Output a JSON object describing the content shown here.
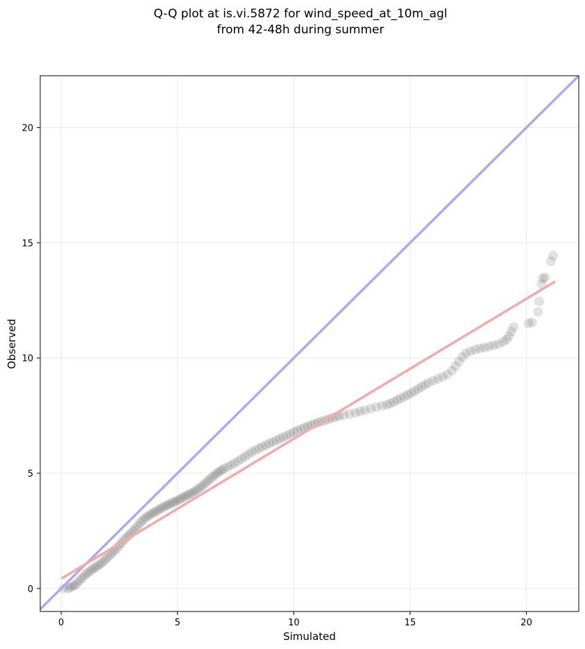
{
  "chart_data": {
    "type": "scatter",
    "title_line1": "Q-Q plot at is.vi.5872 for wind_speed_at_10m_agl",
    "title_line2": "from 42-48h during summer",
    "xlabel": "Simulated",
    "ylabel": "Observed",
    "xlim": [
      -0.9,
      22.25
    ],
    "ylim": [
      -1.0,
      22.25
    ],
    "xticks": [
      0,
      5,
      10,
      15,
      20
    ],
    "yticks": [
      0,
      5,
      10,
      15,
      20
    ],
    "grid": true,
    "colors": {
      "points": "#222222",
      "identity_line": "#aaaaf2",
      "fit_line": "#f4a9a9",
      "grid": "#e8e8e8"
    },
    "identity_line": {
      "x": [
        -0.9,
        22.25
      ],
      "y": [
        -0.9,
        22.25
      ]
    },
    "fit_line": {
      "x": [
        0.05,
        21.2
      ],
      "y": [
        0.45,
        13.3
      ]
    },
    "points": [
      [
        0.1,
        0.0
      ],
      [
        0.3,
        0.0
      ],
      [
        0.4,
        0.05
      ],
      [
        0.5,
        0.1
      ],
      [
        0.6,
        0.15
      ],
      [
        0.7,
        0.25
      ],
      [
        0.8,
        0.35
      ],
      [
        0.9,
        0.45
      ],
      [
        1.0,
        0.55
      ],
      [
        1.1,
        0.65
      ],
      [
        1.2,
        0.72
      ],
      [
        1.3,
        0.8
      ],
      [
        1.4,
        0.87
      ],
      [
        1.5,
        0.93
      ],
      [
        1.6,
        1.0
      ],
      [
        1.7,
        1.07
      ],
      [
        1.8,
        1.15
      ],
      [
        1.9,
        1.25
      ],
      [
        2.0,
        1.35
      ],
      [
        2.1,
        1.45
      ],
      [
        2.2,
        1.55
      ],
      [
        2.3,
        1.65
      ],
      [
        2.4,
        1.75
      ],
      [
        2.5,
        1.87
      ],
      [
        2.6,
        1.98
      ],
      [
        2.7,
        2.1
      ],
      [
        2.8,
        2.2
      ],
      [
        2.9,
        2.3
      ],
      [
        3.0,
        2.4
      ],
      [
        3.1,
        2.5
      ],
      [
        3.2,
        2.6
      ],
      [
        3.3,
        2.72
      ],
      [
        3.4,
        2.85
      ],
      [
        3.5,
        2.95
      ],
      [
        3.6,
        3.05
      ],
      [
        3.7,
        3.12
      ],
      [
        3.8,
        3.18
      ],
      [
        3.9,
        3.25
      ],
      [
        4.0,
        3.3
      ],
      [
        4.1,
        3.36
      ],
      [
        4.2,
        3.42
      ],
      [
        4.3,
        3.48
      ],
      [
        4.4,
        3.53
      ],
      [
        4.5,
        3.58
      ],
      [
        4.6,
        3.63
      ],
      [
        4.7,
        3.68
      ],
      [
        4.8,
        3.73
      ],
      [
        4.9,
        3.77
      ],
      [
        5.0,
        3.82
      ],
      [
        5.1,
        3.87
      ],
      [
        5.2,
        3.93
      ],
      [
        5.3,
        3.98
      ],
      [
        5.4,
        4.03
      ],
      [
        5.5,
        4.08
      ],
      [
        5.6,
        4.13
      ],
      [
        5.7,
        4.19
      ],
      [
        5.8,
        4.25
      ],
      [
        5.9,
        4.32
      ],
      [
        6.0,
        4.4
      ],
      [
        6.1,
        4.48
      ],
      [
        6.2,
        4.57
      ],
      [
        6.3,
        4.66
      ],
      [
        6.4,
        4.75
      ],
      [
        6.5,
        4.84
      ],
      [
        6.6,
        4.92
      ],
      [
        6.7,
        5.0
      ],
      [
        6.8,
        5.07
      ],
      [
        6.9,
        5.14
      ],
      [
        7.0,
        5.2
      ],
      [
        7.15,
        5.27
      ],
      [
        7.3,
        5.35
      ],
      [
        7.45,
        5.43
      ],
      [
        7.6,
        5.52
      ],
      [
        7.75,
        5.62
      ],
      [
        7.9,
        5.72
      ],
      [
        8.05,
        5.82
      ],
      [
        8.2,
        5.92
      ],
      [
        8.35,
        6.0
      ],
      [
        8.5,
        6.08
      ],
      [
        8.65,
        6.15
      ],
      [
        8.8,
        6.22
      ],
      [
        8.95,
        6.29
      ],
      [
        9.1,
        6.36
      ],
      [
        9.25,
        6.43
      ],
      [
        9.4,
        6.5
      ],
      [
        9.55,
        6.57
      ],
      [
        9.7,
        6.63
      ],
      [
        9.85,
        6.7
      ],
      [
        10.0,
        6.78
      ],
      [
        10.15,
        6.85
      ],
      [
        10.3,
        6.92
      ],
      [
        10.45,
        6.98
      ],
      [
        10.6,
        7.04
      ],
      [
        10.75,
        7.1
      ],
      [
        10.9,
        7.15
      ],
      [
        11.05,
        7.2
      ],
      [
        11.2,
        7.25
      ],
      [
        11.35,
        7.3
      ],
      [
        11.5,
        7.35
      ],
      [
        11.65,
        7.4
      ],
      [
        11.8,
        7.45
      ],
      [
        11.95,
        7.48
      ],
      [
        12.15,
        7.52
      ],
      [
        12.4,
        7.57
      ],
      [
        12.65,
        7.62
      ],
      [
        12.85,
        7.68
      ],
      [
        13.05,
        7.73
      ],
      [
        13.3,
        7.8
      ],
      [
        13.55,
        7.87
      ],
      [
        13.8,
        7.93
      ],
      [
        14.0,
        7.97
      ],
      [
        14.15,
        8.02
      ],
      [
        14.3,
        8.1
      ],
      [
        14.45,
        8.18
      ],
      [
        14.6,
        8.25
      ],
      [
        14.75,
        8.33
      ],
      [
        14.9,
        8.4
      ],
      [
        15.05,
        8.48
      ],
      [
        15.2,
        8.57
      ],
      [
        15.35,
        8.66
      ],
      [
        15.5,
        8.75
      ],
      [
        15.65,
        8.84
      ],
      [
        15.8,
        8.93
      ],
      [
        16.0,
        9.02
      ],
      [
        16.2,
        9.1
      ],
      [
        16.4,
        9.18
      ],
      [
        16.6,
        9.28
      ],
      [
        16.8,
        9.45
      ],
      [
        16.95,
        9.65
      ],
      [
        17.1,
        9.85
      ],
      [
        17.25,
        10.05
      ],
      [
        17.4,
        10.2
      ],
      [
        17.6,
        10.3
      ],
      [
        17.8,
        10.37
      ],
      [
        18.0,
        10.42
      ],
      [
        18.2,
        10.45
      ],
      [
        18.4,
        10.5
      ],
      [
        18.6,
        10.55
      ],
      [
        18.8,
        10.6
      ],
      [
        19.0,
        10.7
      ],
      [
        19.15,
        10.8
      ],
      [
        19.25,
        10.95
      ],
      [
        19.35,
        11.15
      ],
      [
        19.45,
        11.35
      ],
      [
        20.1,
        11.5
      ],
      [
        20.25,
        11.55
      ],
      [
        20.5,
        12.0
      ],
      [
        20.55,
        12.45
      ],
      [
        20.65,
        13.2
      ],
      [
        20.7,
        13.45
      ],
      [
        20.8,
        13.5
      ],
      [
        21.05,
        14.2
      ],
      [
        21.15,
        14.45
      ]
    ]
  }
}
